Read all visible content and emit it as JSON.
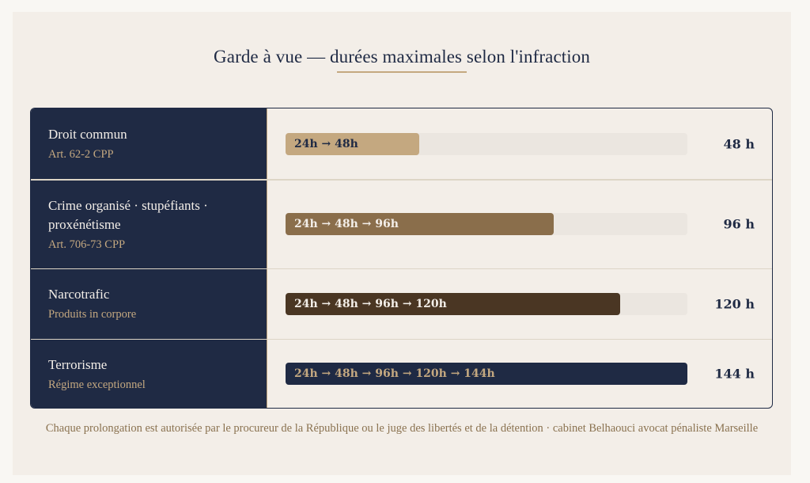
{
  "title": "Garde à vue — durées maximales selon l'infraction",
  "colors": {
    "navy": "#1f2a44",
    "tan": "#c4a880",
    "track": "#ebe6e0",
    "card_bg": "#f3eee8",
    "page_bg": "#f9f7f3"
  },
  "rows": [
    {
      "label": "Droit commun",
      "sublabel": "Art. 62-2 CPP",
      "bar_text": "24h → 48h",
      "value_label": "48 h",
      "hours": 48,
      "bar_color": "#c4a880",
      "text_color": "#1f2a44"
    },
    {
      "label": "Crime organisé · stupéfiants · proxénétisme",
      "sublabel": "Art. 706-73 CPP",
      "bar_text": "24h → 48h → 96h",
      "value_label": "96 h",
      "hours": 96,
      "bar_color": "#8a6e4b",
      "text_color": "#f3eee8"
    },
    {
      "label": "Narcotrafic",
      "sublabel": "Produits in corpore",
      "bar_text": "24h → 48h → 96h → 120h",
      "value_label": "120 h",
      "hours": 120,
      "bar_color": "#4a3623",
      "text_color": "#f3eee8"
    },
    {
      "label": "Terrorisme",
      "sublabel": "Régime exceptionnel",
      "bar_text": "24h → 48h → 96h → 120h → 144h",
      "value_label": "144 h",
      "hours": 144,
      "bar_color": "#1f2a44",
      "text_color": "#c4a880"
    }
  ],
  "footnote": "Chaque prolongation est autorisée par le procureur de la République ou le juge des libertés et de la détention · cabinet Belhaouci avocat pénaliste Marseille",
  "chart_data": {
    "type": "bar",
    "orientation": "horizontal",
    "title": "Garde à vue — durées maximales selon l'infraction",
    "categories": [
      "Droit commun",
      "Crime organisé · stupéfiants · proxénétisme",
      "Narcotrafic",
      "Terrorisme"
    ],
    "subcategories": [
      "Art. 62-2 CPP",
      "Art. 706-73 CPP",
      "Produits in corpore",
      "Régime exceptionnel"
    ],
    "values": [
      48,
      96,
      120,
      144
    ],
    "unit": "h",
    "bar_labels": [
      "24h → 48h",
      "24h → 48h → 96h",
      "24h → 48h → 96h → 120h",
      "24h → 48h → 96h → 120h → 144h"
    ],
    "xlim": [
      0,
      144
    ],
    "xlabel": "",
    "ylabel": "",
    "grid": false,
    "legend": null
  }
}
